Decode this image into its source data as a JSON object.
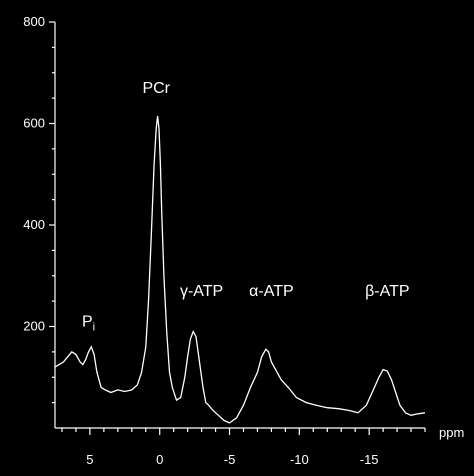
{
  "chart_data": {
    "type": "line",
    "title": "",
    "xlabel": "ppm",
    "ylabel": "",
    "x_reversed": true,
    "xlim": [
      7.5,
      -19
    ],
    "ylim": [
      0,
      800
    ],
    "x_ticks": [
      5,
      0,
      -5,
      -10,
      -15
    ],
    "x_tick_labels": [
      "5",
      "0",
      "-5",
      "-10",
      "-15"
    ],
    "y_ticks": [
      200,
      400,
      600,
      800
    ],
    "y_tick_labels": [
      "200",
      "400",
      "600",
      "800"
    ],
    "grid": false,
    "legend": "none",
    "line_color": "#ffffff",
    "background_color": "#000000",
    "series": [
      {
        "x": [
          7.5,
          7.2,
          6.9,
          6.6,
          6.3,
          6.0,
          5.7,
          5.5,
          5.3,
          5.1,
          4.9,
          4.7,
          4.5,
          4.2,
          3.9,
          3.5,
          3.0,
          2.5,
          2.0,
          1.6,
          1.3,
          1.0,
          0.8,
          0.6,
          0.4,
          0.25,
          0.15,
          0.05,
          -0.05,
          -0.15,
          -0.3,
          -0.5,
          -0.7,
          -0.9,
          -1.2,
          -1.5,
          -1.8,
          -2.0,
          -2.2,
          -2.4,
          -2.6,
          -2.75,
          -2.9,
          -3.1,
          -3.3,
          -3.5,
          -3.8,
          -4.2,
          -4.6,
          -5.0,
          -5.5,
          -6.0,
          -6.5,
          -7.0,
          -7.3,
          -7.6,
          -7.8,
          -8.0,
          -8.3,
          -8.7,
          -9.2,
          -9.8,
          -10.5,
          -11.2,
          -12.0,
          -12.8,
          -13.5,
          -14.2,
          -14.8,
          -15.3,
          -15.7,
          -16.0,
          -16.3,
          -16.6,
          -16.9,
          -17.2,
          -17.6,
          -18.0,
          -18.5,
          -19.0
        ],
        "y": [
          120,
          125,
          130,
          140,
          150,
          145,
          130,
          125,
          135,
          150,
          160,
          145,
          110,
          80,
          75,
          70,
          75,
          72,
          75,
          85,
          110,
          160,
          250,
          380,
          520,
          590,
          615,
          590,
          520,
          420,
          300,
          190,
          110,
          80,
          55,
          60,
          100,
          140,
          175,
          190,
          180,
          150,
          120,
          80,
          50,
          45,
          35,
          25,
          15,
          10,
          20,
          45,
          80,
          110,
          140,
          155,
          150,
          130,
          115,
          95,
          80,
          60,
          50,
          45,
          40,
          38,
          35,
          30,
          45,
          75,
          100,
          115,
          112,
          95,
          70,
          45,
          30,
          25,
          28,
          30
        ]
      }
    ],
    "annotations": [
      {
        "text": "Pi",
        "base": "P",
        "sub": "i",
        "x": 5.1,
        "y": 200
      },
      {
        "text": "PCr",
        "x": 0.25,
        "y": 660
      },
      {
        "text": "γ-ATP",
        "x": -3.0,
        "y": 260
      },
      {
        "text": "α-ATP",
        "x": -8.0,
        "y": 260
      },
      {
        "text": "β-ATP",
        "x": -16.3,
        "y": 260
      }
    ]
  }
}
